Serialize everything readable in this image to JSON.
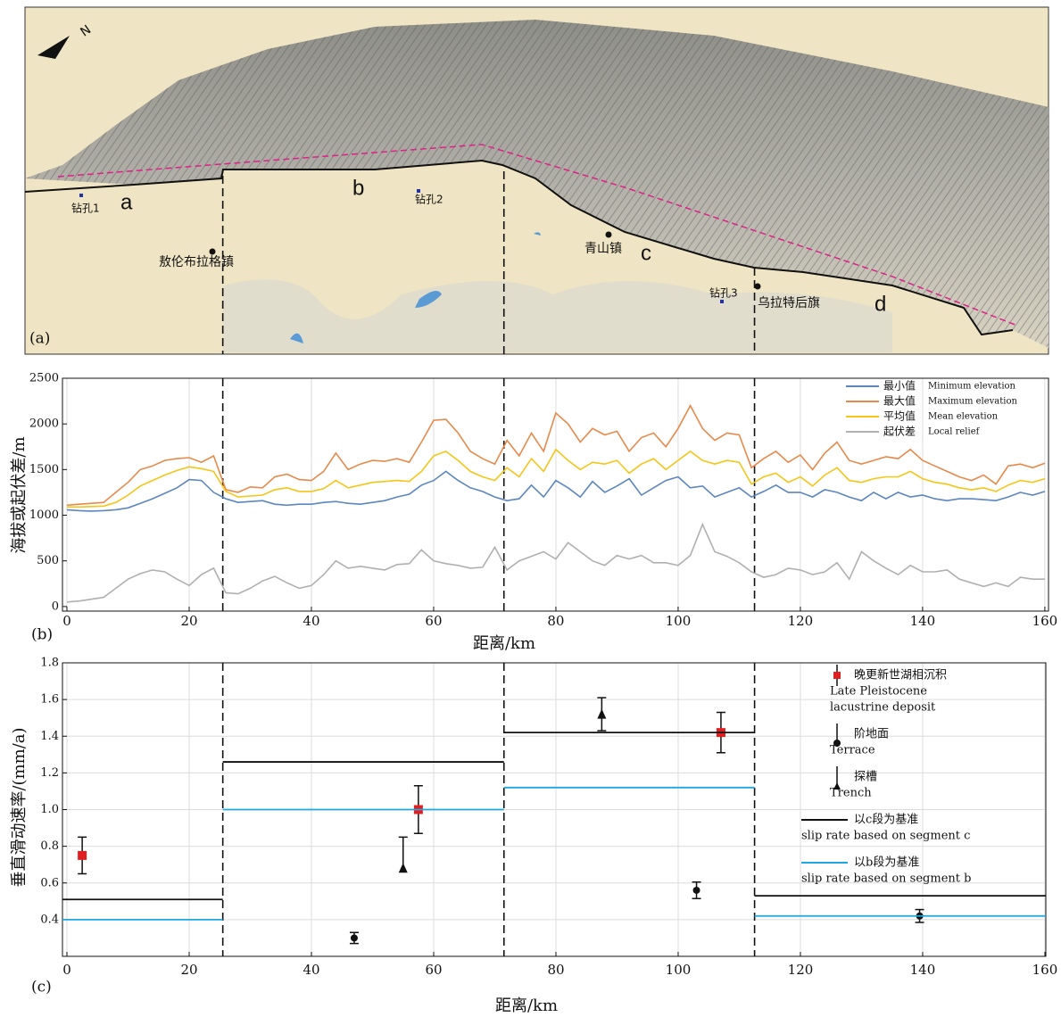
{
  "map": {
    "panel_label": "(a)",
    "north": "N",
    "segments": [
      "a",
      "b",
      "c",
      "d"
    ],
    "boreholes": [
      "钻孔1",
      "钻孔2",
      "钻孔3"
    ],
    "towns": [
      "敖伦布拉格镇",
      "青山镇",
      "乌拉特后旗"
    ]
  },
  "chart_data": [
    {
      "type": "line",
      "panel_label": "(b)",
      "x_label": "距离/km",
      "y_label": "海拔或起伏差/m",
      "xlim": [
        -0.73,
        160.6
      ],
      "ylim": [
        -50,
        2500
      ],
      "xticks": [
        0,
        20,
        40,
        60,
        80,
        100,
        120,
        140,
        160
      ],
      "yticks": [
        0,
        500,
        1000,
        1500,
        2000,
        2500
      ],
      "grid": true,
      "boundaries": [
        25.5,
        71.5,
        112.5
      ],
      "x": [
        0,
        2,
        4,
        6,
        8,
        10,
        12,
        14,
        16,
        18,
        20,
        22,
        24,
        26,
        28,
        30,
        32,
        34,
        36,
        38,
        40,
        42,
        44,
        46,
        48,
        50,
        52,
        54,
        56,
        58,
        60,
        62,
        64,
        66,
        68,
        70,
        72,
        74,
        76,
        78,
        80,
        82,
        84,
        86,
        88,
        90,
        92,
        94,
        96,
        98,
        100,
        102,
        104,
        106,
        108,
        110,
        112,
        114,
        116,
        118,
        120,
        122,
        124,
        126,
        128,
        130,
        132,
        134,
        136,
        138,
        140,
        142,
        144,
        146,
        148,
        150,
        152,
        154,
        156,
        158,
        160
      ],
      "series": [
        {
          "name": "最小值",
          "name_en": "Minimum elevation",
          "color": "#5b86c0",
          "values": [
            1060,
            1050,
            1045,
            1050,
            1060,
            1080,
            1130,
            1180,
            1240,
            1300,
            1390,
            1380,
            1250,
            1180,
            1140,
            1150,
            1160,
            1120,
            1110,
            1120,
            1120,
            1140,
            1150,
            1130,
            1120,
            1140,
            1160,
            1200,
            1230,
            1330,
            1380,
            1480,
            1380,
            1300,
            1260,
            1200,
            1160,
            1180,
            1330,
            1200,
            1380,
            1300,
            1200,
            1370,
            1250,
            1320,
            1400,
            1220,
            1300,
            1380,
            1420,
            1300,
            1320,
            1200,
            1250,
            1300,
            1200,
            1260,
            1330,
            1250,
            1250,
            1200,
            1280,
            1250,
            1200,
            1160,
            1250,
            1180,
            1250,
            1200,
            1220,
            1180,
            1160,
            1180,
            1180,
            1170,
            1160,
            1200,
            1250,
            1220,
            1260
          ]
        },
        {
          "name": "最大值",
          "name_en": "Maximum elevation",
          "color": "#e8894a",
          "values": [
            1110,
            1120,
            1130,
            1140,
            1250,
            1360,
            1500,
            1540,
            1600,
            1620,
            1630,
            1580,
            1650,
            1280,
            1250,
            1310,
            1300,
            1420,
            1450,
            1390,
            1380,
            1480,
            1680,
            1500,
            1560,
            1600,
            1590,
            1620,
            1580,
            1800,
            2040,
            2050,
            1900,
            1700,
            1620,
            1560,
            1820,
            1650,
            1900,
            1700,
            2120,
            2000,
            1800,
            1950,
            1880,
            1920,
            1700,
            1850,
            1900,
            1750,
            1950,
            2200,
            1950,
            1820,
            1900,
            1880,
            1520,
            1620,
            1700,
            1580,
            1660,
            1500,
            1680,
            1800,
            1600,
            1560,
            1600,
            1640,
            1620,
            1720,
            1600,
            1540,
            1480,
            1420,
            1380,
            1440,
            1340,
            1540,
            1560,
            1520,
            1570
          ]
        },
        {
          "name": "平均值",
          "name_en": "Mean elevation",
          "color": "#f5c518",
          "values": [
            1090,
            1090,
            1095,
            1100,
            1140,
            1220,
            1320,
            1380,
            1440,
            1490,
            1530,
            1510,
            1480,
            1260,
            1200,
            1210,
            1220,
            1280,
            1300,
            1260,
            1260,
            1290,
            1380,
            1300,
            1330,
            1360,
            1370,
            1380,
            1370,
            1480,
            1650,
            1700,
            1600,
            1480,
            1420,
            1380,
            1520,
            1420,
            1620,
            1480,
            1720,
            1600,
            1500,
            1580,
            1560,
            1600,
            1460,
            1560,
            1620,
            1500,
            1600,
            1700,
            1600,
            1560,
            1600,
            1580,
            1340,
            1420,
            1460,
            1360,
            1420,
            1320,
            1440,
            1520,
            1380,
            1360,
            1400,
            1420,
            1420,
            1480,
            1400,
            1360,
            1340,
            1300,
            1280,
            1300,
            1260,
            1330,
            1380,
            1360,
            1400
          ]
        },
        {
          "name": "起伏差",
          "name_en": "Local relief",
          "color": "#b0b0b0",
          "values": [
            50,
            60,
            80,
            100,
            200,
            300,
            360,
            400,
            380,
            300,
            230,
            350,
            420,
            150,
            140,
            200,
            280,
            330,
            260,
            200,
            230,
            350,
            500,
            420,
            440,
            420,
            400,
            460,
            470,
            620,
            500,
            470,
            450,
            420,
            430,
            650,
            400,
            500,
            550,
            600,
            520,
            700,
            600,
            500,
            450,
            560,
            520,
            560,
            480,
            480,
            450,
            560,
            900,
            600,
            550,
            480,
            380,
            320,
            350,
            420,
            400,
            350,
            380,
            480,
            300,
            600,
            500,
            420,
            350,
            450,
            380,
            380,
            400,
            300,
            260,
            220,
            260,
            220,
            320,
            300,
            300
          ]
        }
      ]
    },
    {
      "type": "errorbar",
      "panel_label": "(c)",
      "x_label": "距离/km",
      "y_label": "垂直滑动速率/(mm/a)",
      "xlim": [
        -0.73,
        160.15
      ],
      "ylim": [
        0.2,
        1.8
      ],
      "xticks": [
        0,
        20,
        40,
        60,
        80,
        100,
        120,
        140,
        160
      ],
      "yticks": [
        0.4,
        0.6,
        0.8,
        {
          "value": 1,
          "label": "1.0"
        },
        1.2,
        1.4,
        1.6,
        1.8
      ],
      "grid": true,
      "boundaries": [
        25.5,
        71.5,
        112.5
      ],
      "series": [
        {
          "name": "晚更新世湖相沉积",
          "name_en": [
            "Late Pleistocene",
            "lacustrine deposit"
          ],
          "marker": "square",
          "color": "#e02020",
          "x": [
            2.5,
            57.5,
            107
          ],
          "values": [
            0.75,
            1.0,
            1.42
          ],
          "err_low": [
            0.1,
            0.13,
            0.11
          ],
          "err_high": [
            0.1,
            0.13,
            0.11
          ]
        },
        {
          "name": "阶地面",
          "name_en": [
            "Terrace"
          ],
          "marker": "circle",
          "color": "#111111",
          "x": [
            47,
            103,
            139.5
          ],
          "values": [
            0.3,
            0.56,
            0.42
          ],
          "err_low": [
            0.03,
            0.045,
            0.035
          ],
          "err_high": [
            0.03,
            0.045,
            0.035
          ]
        },
        {
          "name": "探槽",
          "name_en": [
            "Trench"
          ],
          "marker": "triangle",
          "color": "#111111",
          "x": [
            55,
            87.5
          ],
          "values": [
            0.68,
            1.52
          ],
          "err_low": [
            0,
            0.09
          ],
          "err_high": [
            0.17,
            0.09
          ]
        },
        {
          "name": "以c段为基准",
          "name_en": [
            "slip rate based on segment c"
          ],
          "marker": "step",
          "color": "#111111",
          "values": [
            0.51,
            1.26,
            1.42,
            0.53
          ]
        },
        {
          "name": "以b段为基准",
          "name_en": [
            "slip rate based on segment b"
          ],
          "marker": "step",
          "color": "#1ea7e0",
          "values": [
            0.4,
            1.0,
            1.12,
            0.42
          ]
        }
      ]
    }
  ]
}
